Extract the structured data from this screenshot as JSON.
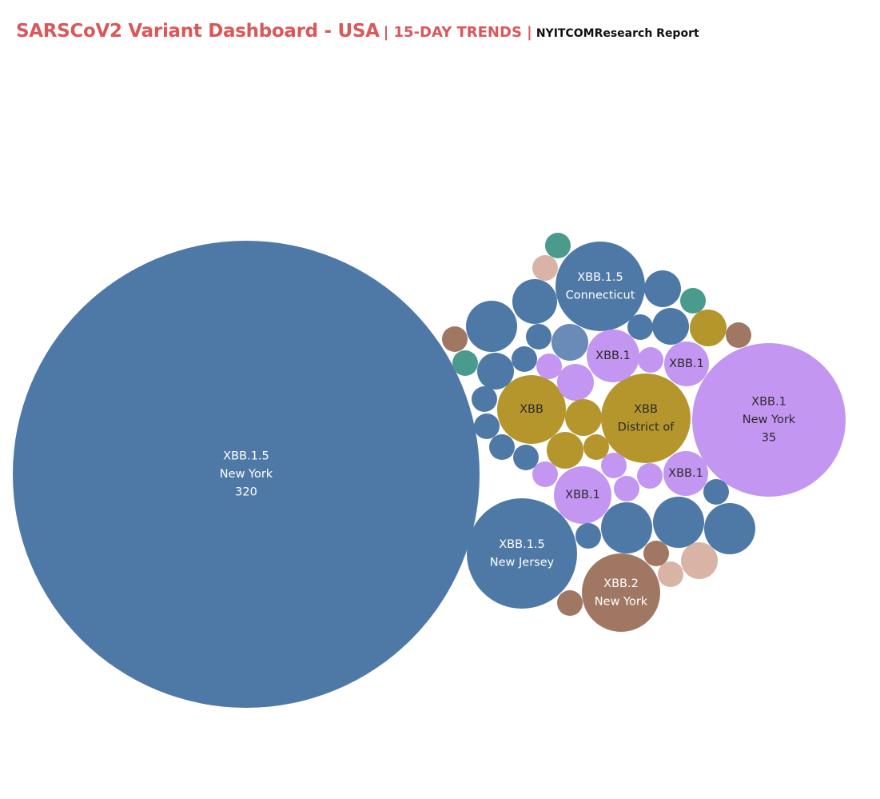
{
  "header": {
    "title": "SARSCoV2 Variant Dashboard - USA",
    "subtitle": "| 15-DAY TRENDS |",
    "report": "NYITCOMResearch Report"
  },
  "colors": {
    "XBB.1.5": "#4e79a7",
    "XBB.1.5-light": "#6a8ab7",
    "XBB.1": "#c396f2",
    "XBB": "#b5962d",
    "XBB.2": "#a07763",
    "teal": "#4b9a8e",
    "peach": "#d9b4a6",
    "pink": "#d5a6c8"
  },
  "chart_data": {
    "type": "packed-bubble",
    "title": "SARSCoV2 Variant Dashboard - USA",
    "bubbles": [
      {
        "variant": "XBB.1.5",
        "state": "New York",
        "value": 320,
        "labels": [
          "XBB.1.5",
          "New York",
          "320"
        ],
        "color_key": "XBB.1.5"
      },
      {
        "variant": "XBB.1",
        "state": "New York",
        "value": 35,
        "labels": [
          "XBB.1",
          "New York",
          "35"
        ],
        "color_key": "XBB.1"
      },
      {
        "variant": "XBB.1.5",
        "state": "New Jersey",
        "labels": [
          "XBB.1.5",
          "New Jersey"
        ],
        "color_key": "XBB.1.5"
      },
      {
        "variant": "XBB.1.5",
        "state": "Connecticut",
        "labels": [
          "XBB.1.5",
          "Connecticut"
        ],
        "color_key": "XBB.1.5"
      },
      {
        "variant": "XBB",
        "state": "District of",
        "labels": [
          "XBB",
          "District of"
        ],
        "color_key": "XBB"
      },
      {
        "variant": "XBB.2",
        "state": "New York",
        "labels": [
          "XBB.2",
          "New York"
        ],
        "color_key": "XBB.2"
      },
      {
        "variant": "XBB",
        "labels": [
          "XBB"
        ],
        "color_key": "XBB"
      },
      {
        "variant": "XBB.1",
        "labels": [
          "XBB.1"
        ],
        "color_key": "XBB.1"
      },
      {
        "variant": "XBB.1",
        "labels": [
          "XBB.1"
        ],
        "color_key": "XBB.1"
      },
      {
        "variant": "XBB.1",
        "labels": [
          "XBB.1"
        ],
        "color_key": "XBB.1"
      },
      {
        "variant": "XBB.1",
        "labels": [
          "XBB.1"
        ],
        "color_key": "XBB.1"
      },
      {
        "color_key": "XBB.1.5"
      },
      {
        "color_key": "XBB.1.5"
      },
      {
        "color_key": "XBB.1.5"
      },
      {
        "color_key": "XBB.1.5"
      },
      {
        "color_key": "XBB.1.5"
      },
      {
        "color_key": "XBB.1.5"
      },
      {
        "color_key": "XBB.1.5"
      },
      {
        "color_key": "XBB.1.5"
      },
      {
        "color_key": "XBB.1.5"
      },
      {
        "color_key": "XBB.1.5"
      },
      {
        "color_key": "XBB.1.5"
      },
      {
        "color_key": "XBB.1.5"
      },
      {
        "color_key": "XBB.1.5"
      },
      {
        "color_key": "XBB.1.5"
      },
      {
        "color_key": "XBB.1.5"
      },
      {
        "color_key": "XBB.1.5"
      },
      {
        "color_key": "XBB.1.5"
      },
      {
        "color_key": "XBB.1.5-light"
      },
      {
        "color_key": "XBB.1"
      },
      {
        "color_key": "XBB.1"
      },
      {
        "color_key": "XBB.1"
      },
      {
        "color_key": "XBB.1"
      },
      {
        "color_key": "XBB.1"
      },
      {
        "color_key": "XBB.1"
      },
      {
        "color_key": "XBB.1"
      },
      {
        "color_key": "XBB"
      },
      {
        "color_key": "XBB"
      },
      {
        "color_key": "XBB"
      },
      {
        "color_key": "XBB"
      },
      {
        "color_key": "XBB.2"
      },
      {
        "color_key": "XBB.2"
      },
      {
        "color_key": "XBB.2"
      },
      {
        "color_key": "XBB.2"
      },
      {
        "color_key": "teal"
      },
      {
        "color_key": "teal"
      },
      {
        "color_key": "teal"
      },
      {
        "color_key": "peach"
      },
      {
        "color_key": "peach"
      },
      {
        "color_key": "peach"
      },
      {
        "color_key": "pink"
      }
    ]
  }
}
